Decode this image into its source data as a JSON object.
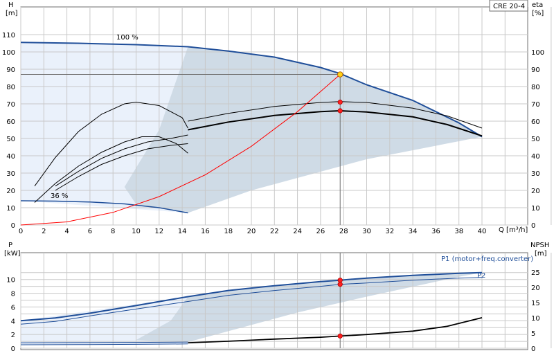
{
  "model": "CRE 20-4",
  "chart_data": [
    {
      "type": "line",
      "title": "",
      "ylabel": "H",
      "ylabel_unit": "[m]",
      "y2label": "eta",
      "y2label_unit": "[%]",
      "xlabel": "Q [m³/h]",
      "xlim": [
        0,
        40
      ],
      "ylim": [
        0,
        120
      ],
      "y2lim": [
        0,
        120
      ],
      "xticks": [
        0,
        2,
        4,
        6,
        8,
        10,
        12,
        14,
        16,
        18,
        20,
        22,
        24,
        26,
        28,
        30,
        32,
        34,
        36,
        38,
        40
      ],
      "yticks": [
        0,
        10,
        20,
        30,
        40,
        50,
        60,
        70,
        80,
        90,
        100,
        110
      ],
      "y2ticks": [
        0,
        10,
        20,
        30,
        40,
        50,
        60,
        70,
        80,
        90,
        100
      ],
      "labels": {
        "max_speed": "100 %",
        "min_speed": "36 %"
      },
      "grid": true,
      "operating_point": {
        "q": 27.7,
        "h": 87,
        "eta_motor_pump": 71,
        "eta_total": 66
      },
      "series": [
        {
          "name": "",
          "role": "h_max",
          "color": "#1f4e99",
          "points": [
            [
              0,
              105.5
            ],
            [
              5,
              105
            ],
            [
              10,
              104.2
            ],
            [
              14.5,
              103
            ],
            [
              18,
              100.5
            ],
            [
              22,
              97
            ],
            [
              26,
              91
            ],
            [
              27.7,
              87.5
            ],
            [
              30,
              81
            ],
            [
              34,
              72
            ],
            [
              38,
              59
            ],
            [
              40,
              51
            ]
          ]
        },
        {
          "name": "",
          "role": "h_min",
          "color": "#1f4e99",
          "points": [
            [
              0,
              14
            ],
            [
              3,
              13.8
            ],
            [
              6,
              13.3
            ],
            [
              9,
              12.2
            ],
            [
              12,
              10
            ],
            [
              14.5,
              7
            ]
          ]
        },
        {
          "name": "",
          "role": "eta_total_max",
          "color": "#000000",
          "points": [
            [
              14.5,
              55
            ],
            [
              18,
              59.5
            ],
            [
              22,
              63.3
            ],
            [
              26,
              65.5
            ],
            [
              27.7,
              66
            ],
            [
              30,
              65.3
            ],
            [
              34,
              62.5
            ],
            [
              37,
              58
            ],
            [
              40,
              51.5
            ]
          ]
        },
        {
          "name": "",
          "role": "eta_motor_pump_max",
          "color": "#000000",
          "points": [
            [
              14.5,
              60
            ],
            [
              18,
              64.5
            ],
            [
              22,
              68.5
            ],
            [
              26,
              70.8
            ],
            [
              27.7,
              71.3
            ],
            [
              30,
              70.8
            ],
            [
              34,
              67.5
            ],
            [
              37,
              63
            ],
            [
              40,
              56
            ]
          ]
        },
        {
          "name": "",
          "role": "eta_left_upper",
          "color": "#000000",
          "points": [
            [
              1.2,
              22.5
            ],
            [
              3,
              39
            ],
            [
              5,
              54
            ],
            [
              7,
              64
            ],
            [
              9,
              70
            ],
            [
              10,
              71
            ],
            [
              12,
              69
            ],
            [
              14,
              62
            ],
            [
              14.5,
              56
            ]
          ]
        },
        {
          "name": "",
          "role": "eta_left_lower",
          "color": "#000000",
          "points": [
            [
              1.2,
              13
            ],
            [
              3,
              24
            ],
            [
              5,
              34
            ],
            [
              7,
              42
            ],
            [
              9,
              48
            ],
            [
              10.5,
              51
            ],
            [
              12,
              51
            ],
            [
              13.5,
              47
            ],
            [
              14.5,
              41.5
            ]
          ]
        },
        {
          "name": "",
          "role": "eta_lower_a",
          "color": "#000000",
          "points": [
            [
              3,
              20
            ],
            [
              5,
              28
            ],
            [
              7,
              35
            ],
            [
              9,
              40
            ],
            [
              11,
              44
            ],
            [
              13,
              46
            ],
            [
              14.5,
              47
            ]
          ]
        },
        {
          "name": "",
          "role": "eta_lower_b",
          "color": "#000000",
          "points": [
            [
              3,
              22.5
            ],
            [
              5,
              31
            ],
            [
              7,
              38.5
            ],
            [
              9,
              44
            ],
            [
              11,
              48
            ],
            [
              13,
              50
            ],
            [
              14.5,
              52
            ]
          ]
        },
        {
          "name": "",
          "role": "system_curve",
          "color": "#ff0000",
          "points": [
            [
              0,
              0
            ],
            [
              4,
              1.8
            ],
            [
              8,
              7.3
            ],
            [
              12,
              16.4
            ],
            [
              16,
              29
            ],
            [
              20,
              45.5
            ],
            [
              24,
              65.5
            ],
            [
              27.7,
              87
            ]
          ]
        }
      ]
    },
    {
      "type": "line",
      "title": "",
      "ylabel": "P",
      "ylabel_unit": "[kW]",
      "y2label": "NPSH",
      "y2label_unit": "[m]",
      "xlim": [
        0,
        40
      ],
      "ylim": [
        0,
        12
      ],
      "y2lim": [
        0,
        30
      ],
      "yticks": [
        0,
        2,
        4,
        6,
        8,
        10
      ],
      "y2ticks": [
        0,
        5,
        10,
        15,
        20,
        25
      ],
      "grid": true,
      "series": [
        {
          "name": "P1 (motor+freq.converter)",
          "color": "#1f4e99",
          "points": [
            [
              0,
              4
            ],
            [
              3,
              4.4
            ],
            [
              6,
              5.1
            ],
            [
              10,
              6.2
            ],
            [
              14.5,
              7.5
            ],
            [
              18,
              8.4
            ],
            [
              22,
              9.1
            ],
            [
              26,
              9.7
            ],
            [
              27.7,
              9.9
            ],
            [
              30,
              10.2
            ],
            [
              34,
              10.6
            ],
            [
              38,
              10.9
            ],
            [
              40,
              11
            ]
          ]
        },
        {
          "name": "P2",
          "color": "#1f4e99",
          "points": [
            [
              0,
              3.5
            ],
            [
              3,
              3.9
            ],
            [
              6,
              4.7
            ],
            [
              10,
              5.7
            ],
            [
              14.5,
              6.8
            ],
            [
              18,
              7.7
            ],
            [
              22,
              8.4
            ],
            [
              26,
              9
            ],
            [
              27.7,
              9.3
            ],
            [
              30,
              9.5
            ],
            [
              34,
              9.9
            ],
            [
              38,
              10.2
            ],
            [
              40,
              10.3
            ]
          ]
        },
        {
          "name": "",
          "role": "p_min",
          "color": "#1f4e99",
          "points": [
            [
              0,
              0.8
            ],
            [
              5,
              0.82
            ],
            [
              10,
              0.85
            ],
            [
              14.5,
              0.9
            ]
          ]
        },
        {
          "name": "",
          "role": "p_min_2",
          "color": "#1f4e99",
          "points": [
            [
              0,
              0.5
            ],
            [
              5,
              0.52
            ],
            [
              10,
              0.56
            ],
            [
              14.5,
              0.62
            ]
          ]
        },
        {
          "name": "",
          "role": "npsh",
          "axis": "y2",
          "color": "#000000",
          "points": [
            [
              14.5,
              1.8
            ],
            [
              18,
              2.3
            ],
            [
              22,
              3
            ],
            [
              26,
              3.6
            ],
            [
              27.7,
              4
            ],
            [
              30,
              4.5
            ],
            [
              34,
              5.6
            ],
            [
              37,
              7.2
            ],
            [
              40,
              10
            ]
          ]
        }
      ],
      "operating_point": {
        "q": 27.7,
        "p1": 9.9,
        "p2": 9.3,
        "npsh": 4
      }
    }
  ]
}
